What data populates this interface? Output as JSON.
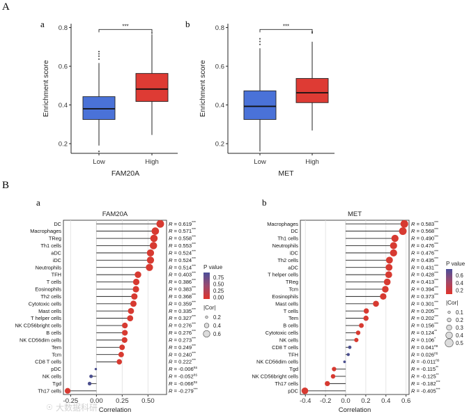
{
  "panels": {
    "A": "A",
    "B": "B",
    "Aa": "a",
    "Ab": "b",
    "Ba": "a",
    "Bb": "b"
  },
  "watermark": "大数据科研",
  "colors": {
    "low": "#4a72d8",
    "high": "#de3b34",
    "dot_high": "#d73a31",
    "dot_low": "#4b4f8e"
  },
  "chart_data": [
    {
      "type": "box",
      "panel": "A-a",
      "xlabel": "FAM20A",
      "ylabel": "Enrichment score",
      "ylim": [
        0.15,
        0.82
      ],
      "yticks": [
        "0.2",
        "0.4",
        "0.6",
        "0.8"
      ],
      "significance": "***",
      "categories": [
        "Low",
        "High"
      ],
      "boxes": [
        {
          "name": "Low",
          "min": 0.19,
          "q1": 0.325,
          "median": 0.38,
          "q3": 0.443,
          "max": 0.617,
          "outliers": [
            0.16,
            0.637,
            0.652,
            0.664,
            0.676
          ]
        },
        {
          "name": "High",
          "min": 0.245,
          "q1": 0.418,
          "median": 0.482,
          "q3": 0.563,
          "max": 0.765,
          "outliers": [
            0.772
          ]
        }
      ]
    },
    {
      "type": "box",
      "panel": "A-b",
      "xlabel": "MET",
      "ylabel": "Enrichment score",
      "ylim": [
        0.15,
        0.82
      ],
      "yticks": [
        "0.2",
        "0.4",
        "0.6",
        "0.8"
      ],
      "significance": "***",
      "categories": [
        "Low",
        "High"
      ],
      "boxes": [
        {
          "name": "Low",
          "min": 0.16,
          "q1": 0.325,
          "median": 0.393,
          "q3": 0.473,
          "max": 0.693,
          "outliers": [
            0.713,
            0.728,
            0.742
          ]
        },
        {
          "name": "High",
          "min": 0.268,
          "q1": 0.412,
          "median": 0.463,
          "q3": 0.537,
          "max": 0.727,
          "outliers": [
            0.772,
            0.777
          ]
        }
      ]
    },
    {
      "type": "lollipop",
      "panel": "B-a",
      "title": "FAM20A",
      "xlabel": "Correlation",
      "xlim": [
        -0.32,
        0.68
      ],
      "xticks": [
        -0.25,
        0.0,
        0.25,
        0.5
      ],
      "xtick_labels": [
        "-0.25",
        "0.00",
        "0.25",
        "0.50"
      ],
      "legend": {
        "pvalue_title": "P value",
        "pvalue_ticks": [
          "0.75",
          "0.50",
          "0.25",
          "0.00"
        ],
        "cor_title": "|Cor|",
        "cor_ticks": [
          "0.2",
          "0.4",
          "0.6"
        ]
      },
      "rows": [
        {
          "cell": "DC",
          "r": 0.619,
          "sig": "***"
        },
        {
          "cell": "Macrophages",
          "r": 0.571,
          "sig": "***"
        },
        {
          "cell": "TReg",
          "r": 0.558,
          "sig": "***"
        },
        {
          "cell": "Th1 cells",
          "r": 0.553,
          "sig": "***"
        },
        {
          "cell": "aDC",
          "r": 0.524,
          "sig": "***"
        },
        {
          "cell": "iDC",
          "r": 0.524,
          "sig": "***"
        },
        {
          "cell": "Neutrophils",
          "r": 0.514,
          "sig": "***"
        },
        {
          "cell": "TFH",
          "r": 0.403,
          "sig": "***"
        },
        {
          "cell": "T cells",
          "r": 0.386,
          "sig": "***"
        },
        {
          "cell": "Eosinophils",
          "r": 0.383,
          "sig": "***"
        },
        {
          "cell": "Th2 cells",
          "r": 0.368,
          "sig": "***"
        },
        {
          "cell": "Cytotoxic cells",
          "r": 0.359,
          "sig": "***"
        },
        {
          "cell": "Mast cells",
          "r": 0.335,
          "sig": "***"
        },
        {
          "cell": "T helper cells",
          "r": 0.327,
          "sig": "***"
        },
        {
          "cell": "NK CD56bright cells",
          "r": 0.276,
          "sig": "***"
        },
        {
          "cell": "B cells",
          "r": 0.276,
          "sig": "***"
        },
        {
          "cell": "NK CD56dim cells",
          "r": 0.273,
          "sig": "***"
        },
        {
          "cell": "Tem",
          "r": 0.249,
          "sig": "***"
        },
        {
          "cell": "Tcm",
          "r": 0.24,
          "sig": "***"
        },
        {
          "cell": "CD8 T cells",
          "r": 0.222,
          "sig": "***"
        },
        {
          "cell": "pDC",
          "r": -0.006,
          "sig": "ns"
        },
        {
          "cell": "NK cells",
          "r": -0.052,
          "sig": "ns"
        },
        {
          "cell": "Tgd",
          "r": -0.066,
          "sig": "ns"
        },
        {
          "cell": "Th17 cells",
          "r": -0.279,
          "sig": "***"
        }
      ]
    },
    {
      "type": "lollipop",
      "panel": "B-b",
      "title": "MET",
      "xlabel": "Correlation",
      "xlim": [
        -0.45,
        0.63
      ],
      "xticks": [
        -0.4,
        -0.2,
        0.0,
        0.2,
        0.4,
        0.6
      ],
      "xtick_labels": [
        "-0.4",
        "-0.2",
        "0.0",
        "0.2",
        "0.4",
        "0.6"
      ],
      "legend": {
        "pvalue_title": "P value",
        "pvalue_ticks": [
          "0.6",
          "0.4",
          "0.2"
        ],
        "cor_title": "|Cor|",
        "cor_ticks": [
          "0.1",
          "0.2",
          "0.3",
          "0.4",
          "0.5"
        ]
      },
      "rows": [
        {
          "cell": "Macrophages",
          "r": 0.583,
          "sig": "***"
        },
        {
          "cell": "DC",
          "r": 0.568,
          "sig": "***"
        },
        {
          "cell": "Th1 cells",
          "r": 0.49,
          "sig": "***"
        },
        {
          "cell": "Neutrophils",
          "r": 0.476,
          "sig": "***"
        },
        {
          "cell": "iDC",
          "r": 0.476,
          "sig": "***"
        },
        {
          "cell": "Th2 cells",
          "r": 0.435,
          "sig": "***"
        },
        {
          "cell": "aDC",
          "r": 0.431,
          "sig": "***"
        },
        {
          "cell": "T helper cells",
          "r": 0.428,
          "sig": "***"
        },
        {
          "cell": "TReg",
          "r": 0.413,
          "sig": "***"
        },
        {
          "cell": "Tcm",
          "r": 0.394,
          "sig": "***"
        },
        {
          "cell": "Eosinophils",
          "r": 0.373,
          "sig": "***"
        },
        {
          "cell": "Mast cells",
          "r": 0.301,
          "sig": "***"
        },
        {
          "cell": "T cells",
          "r": 0.205,
          "sig": "***"
        },
        {
          "cell": "Tem",
          "r": 0.202,
          "sig": "***"
        },
        {
          "cell": "B cells",
          "r": 0.156,
          "sig": "***"
        },
        {
          "cell": "Cytotoxic cells",
          "r": 0.124,
          "sig": "**"
        },
        {
          "cell": "NK cells",
          "r": 0.106,
          "sig": "*"
        },
        {
          "cell": "CD8 T cells",
          "r": 0.041,
          "sig": "ns"
        },
        {
          "cell": "TFH",
          "r": 0.026,
          "sig": "ns"
        },
        {
          "cell": "NK CD56dim cells",
          "r": -0.011,
          "sig": "ns"
        },
        {
          "cell": "Tgd",
          "r": -0.115,
          "sig": "**"
        },
        {
          "cell": "NK CD56bright cells",
          "r": -0.125,
          "sig": "**"
        },
        {
          "cell": "Th17 cells",
          "r": -0.182,
          "sig": "***"
        },
        {
          "cell": "pDC",
          "r": -0.405,
          "sig": "***"
        }
      ]
    }
  ]
}
